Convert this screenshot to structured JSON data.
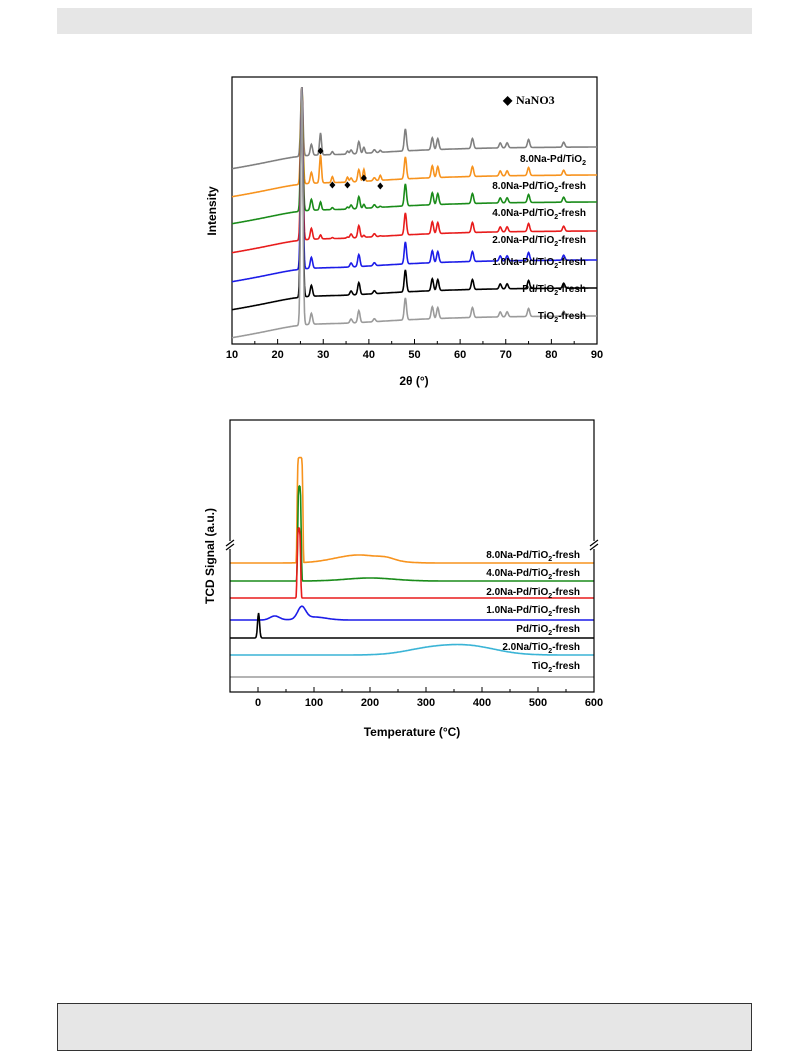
{
  "chart_data": [
    {
      "type": "line",
      "xlabel": "2θ (°)",
      "ylabel": "Intensity",
      "xlim": [
        10,
        90
      ],
      "xticks": [
        10,
        20,
        30,
        40,
        50,
        60,
        70,
        80,
        90
      ],
      "grid": false,
      "legend": {
        "symbol": "◆",
        "text": "NaNO3",
        "placement": "top-right"
      },
      "marker_positions": [
        29.4,
        32.0,
        35.3,
        38.9,
        42.5
      ],
      "peaks_TiO2": [
        25.3,
        27.4,
        36.1,
        37.8,
        41.2,
        48.0,
        53.9,
        55.1,
        62.7,
        68.8,
        70.3,
        75.0,
        82.7
      ],
      "series": [
        {
          "name": "8.0Na-Pd/TiO",
          "sub": "2",
          "suffix": "",
          "color": "#808080"
        },
        {
          "name": "8.0Na-Pd/TiO",
          "sub": "2",
          "suffix": "-fresh",
          "color": "#f7931e"
        },
        {
          "name": "4.0Na-Pd/TiO",
          "sub": "2",
          "suffix": "-fresh",
          "color": "#1a8c1a"
        },
        {
          "name": "2.0Na-Pd/TiO",
          "sub": "2",
          "suffix": "-fresh",
          "color": "#e81c1c"
        },
        {
          "name": "1.0Na-Pd/TiO",
          "sub": "2",
          "suffix": "-fresh",
          "color": "#1c1ce8"
        },
        {
          "name": "Pd/TiO",
          "sub": "2",
          "suffix": "-fresh",
          "color": "#000000"
        },
        {
          "name": "TiO",
          "sub": "2",
          "suffix": "-fresh",
          "color": "#9b9b9b"
        }
      ]
    },
    {
      "type": "line",
      "xlabel": "Temperature (°C)",
      "ylabel": "TCD Signal (a.u.)",
      "xlim": [
        -50,
        600
      ],
      "xticks": [
        0,
        100,
        200,
        300,
        400,
        500,
        600
      ],
      "grid": false,
      "axis_break": true,
      "series": [
        {
          "name": "8.0Na-Pd/TiO",
          "sub": "2",
          "suffix": "-fresh",
          "color": "#f7931e",
          "peak_x": 75
        },
        {
          "name": "4.0Na-Pd/TiO",
          "sub": "2",
          "suffix": "-fresh",
          "color": "#1a8c1a",
          "peak_x": 74
        },
        {
          "name": "2.0Na-Pd/TiO",
          "sub": "2",
          "suffix": "-fresh",
          "color": "#e81c1c",
          "peak_x": 73
        },
        {
          "name": "1.0Na-Pd/TiO",
          "sub": "2",
          "suffix": "-fresh",
          "color": "#1c1ce8",
          "peak_x": 78
        },
        {
          "name": "Pd/TiO",
          "sub": "2",
          "suffix": "-fresh",
          "color": "#000000",
          "peak_x": 1
        },
        {
          "name": "2.0Na/TiO",
          "sub": "2",
          "suffix": "-fresh",
          "color": "#3ab4d6",
          "peak_x": 375
        },
        {
          "name": "TiO",
          "sub": "2",
          "suffix": "-fresh",
          "color": "#9b9b9b"
        }
      ]
    }
  ]
}
